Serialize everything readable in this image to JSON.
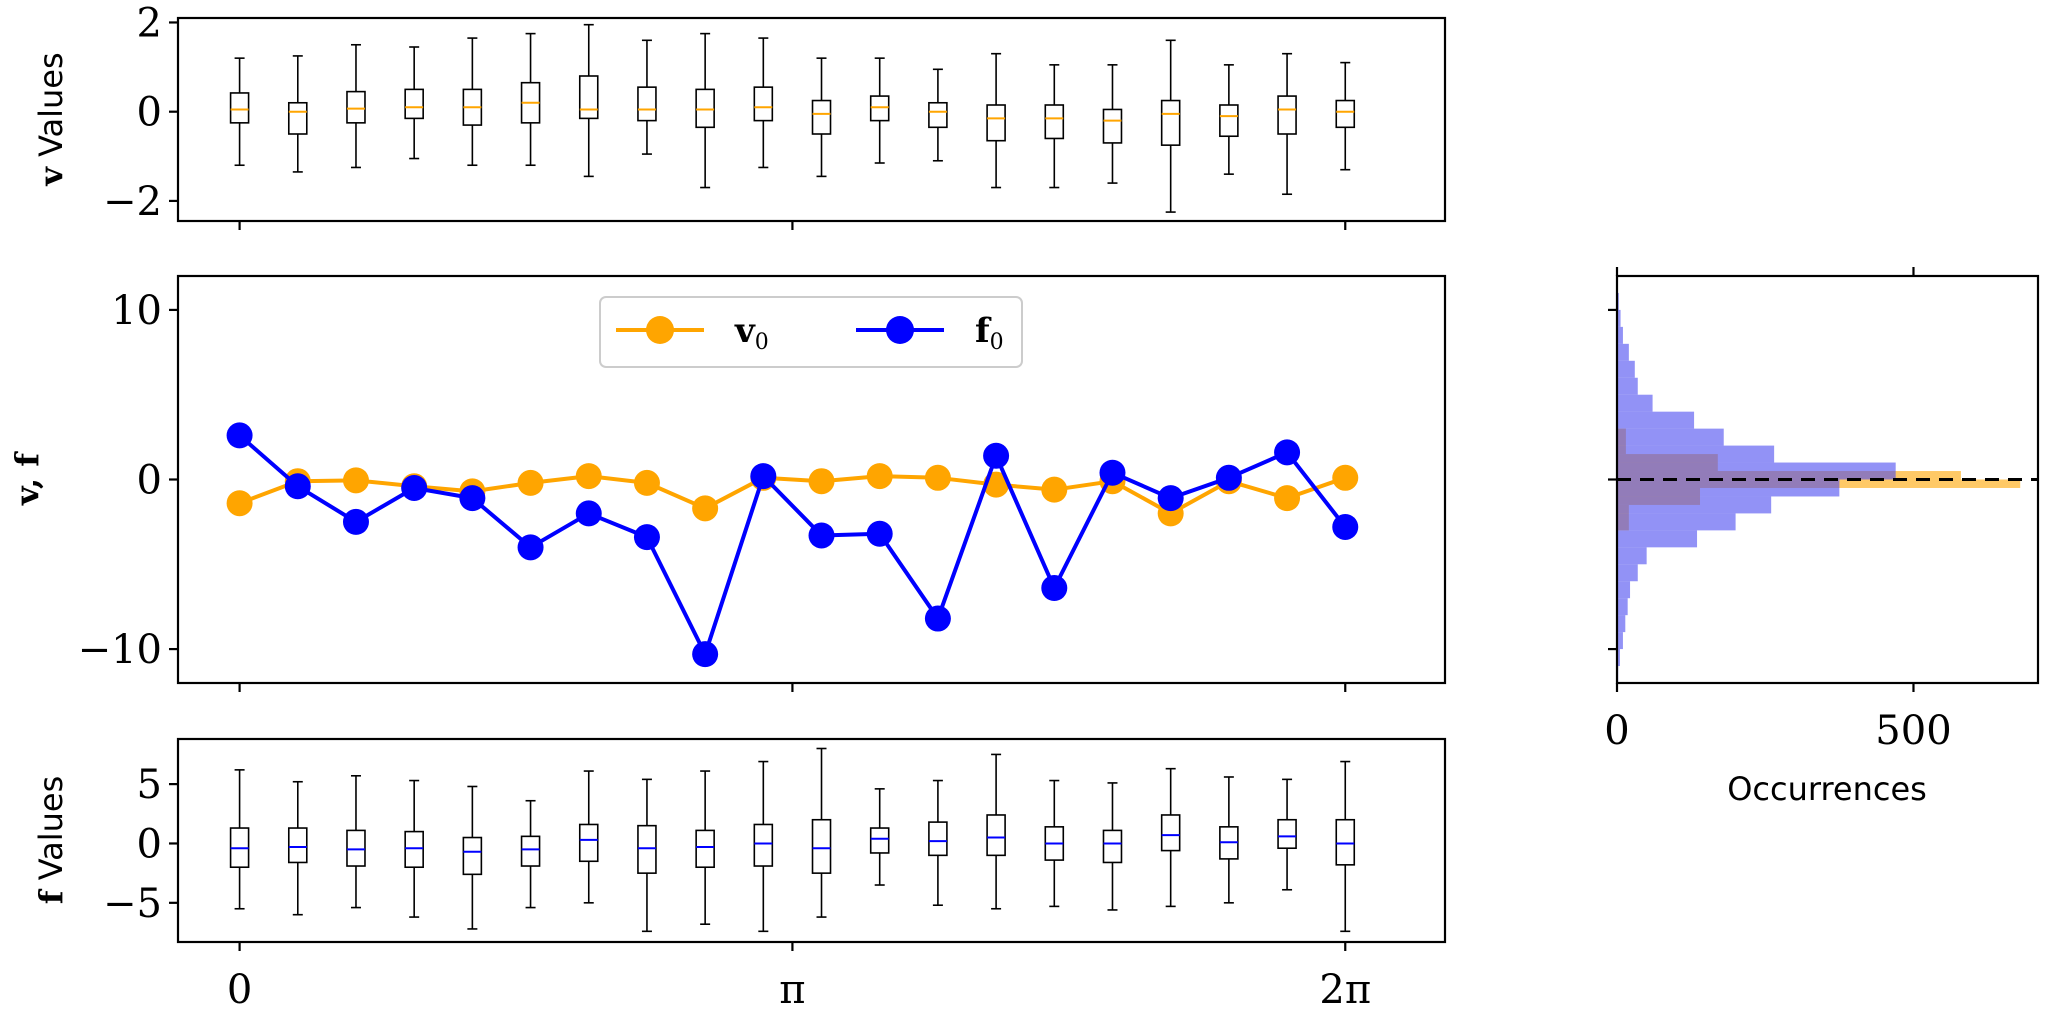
{
  "colors": {
    "v": "#FFA500",
    "f": "#0000FF",
    "v_hist": "#FFA500",
    "f_hist": "#4A4AF0"
  },
  "x_ticks": [
    "0",
    "π",
    "2π"
  ],
  "top_panel": {
    "ylabel_bold": "v",
    "ylabel_rest": " Values",
    "y_ticks": [
      "2",
      "0",
      "−2"
    ]
  },
  "middle_panel": {
    "ylabel": "v, f",
    "y_ticks": [
      "10",
      "0",
      "−10"
    ],
    "legend": {
      "v_label": "v",
      "v_sub": "0",
      "f_label": "f",
      "f_sub": "0"
    }
  },
  "bottom_panel": {
    "ylabel_bold": "f",
    "ylabel_rest": " Values",
    "y_ticks": [
      "5",
      "0",
      "−5"
    ]
  },
  "hist_panel": {
    "x_ticks": [
      "0",
      "500"
    ],
    "xlabel": "Occurrences"
  },
  "chart_data": [
    {
      "type": "box",
      "panel": "top",
      "xlim": [
        -0.35,
        6.85
      ],
      "ylim": [
        -2.45,
        2.1
      ],
      "x": [
        0,
        0.3307,
        0.6614,
        0.9921,
        1.3228,
        1.6535,
        1.9842,
        2.3149,
        2.6456,
        2.9762,
        3.3069,
        3.6376,
        3.9683,
        4.299,
        4.6297,
        4.9604,
        5.2911,
        5.6218,
        5.9525,
        6.2832
      ],
      "boxes": [
        {
          "min": -1.2,
          "q1": -0.25,
          "med": 0.05,
          "q3": 0.42,
          "max": 1.2
        },
        {
          "min": -1.35,
          "q1": -0.5,
          "med": 0.0,
          "q3": 0.2,
          "max": 1.25
        },
        {
          "min": -1.25,
          "q1": -0.25,
          "med": 0.07,
          "q3": 0.45,
          "max": 1.5
        },
        {
          "min": -1.05,
          "q1": -0.15,
          "med": 0.1,
          "q3": 0.5,
          "max": 1.45
        },
        {
          "min": -1.2,
          "q1": -0.3,
          "med": 0.1,
          "q3": 0.5,
          "max": 1.65
        },
        {
          "min": -1.2,
          "q1": -0.25,
          "med": 0.2,
          "q3": 0.65,
          "max": 1.75
        },
        {
          "min": -1.45,
          "q1": -0.15,
          "med": 0.05,
          "q3": 0.8,
          "max": 1.95
        },
        {
          "min": -0.95,
          "q1": -0.2,
          "med": 0.05,
          "q3": 0.55,
          "max": 1.6
        },
        {
          "min": -1.7,
          "q1": -0.35,
          "med": 0.05,
          "q3": 0.5,
          "max": 1.75
        },
        {
          "min": -1.25,
          "q1": -0.2,
          "med": 0.1,
          "q3": 0.55,
          "max": 1.65
        },
        {
          "min": -1.45,
          "q1": -0.5,
          "med": -0.05,
          "q3": 0.25,
          "max": 1.2
        },
        {
          "min": -1.15,
          "q1": -0.2,
          "med": 0.1,
          "q3": 0.35,
          "max": 1.2
        },
        {
          "min": -1.1,
          "q1": -0.35,
          "med": 0.0,
          "q3": 0.2,
          "max": 0.95
        },
        {
          "min": -1.7,
          "q1": -0.65,
          "med": -0.15,
          "q3": 0.15,
          "max": 1.3
        },
        {
          "min": -1.7,
          "q1": -0.6,
          "med": -0.15,
          "q3": 0.15,
          "max": 1.05
        },
        {
          "min": -1.6,
          "q1": -0.7,
          "med": -0.2,
          "q3": 0.05,
          "max": 1.05
        },
        {
          "min": -2.25,
          "q1": -0.75,
          "med": -0.05,
          "q3": 0.25,
          "max": 1.6
        },
        {
          "min": -1.4,
          "q1": -0.55,
          "med": -0.1,
          "q3": 0.15,
          "max": 1.05
        },
        {
          "min": -1.85,
          "q1": -0.5,
          "med": 0.05,
          "q3": 0.35,
          "max": 1.3
        },
        {
          "min": -1.3,
          "q1": -0.35,
          "med": 0.0,
          "q3": 0.25,
          "max": 1.1
        }
      ]
    },
    {
      "type": "line",
      "panel": "middle",
      "xlim": [
        -0.35,
        6.85
      ],
      "ylim": [
        -12,
        12
      ],
      "x": [
        0,
        0.3307,
        0.6614,
        0.9921,
        1.3228,
        1.6535,
        1.9842,
        2.3149,
        2.6456,
        2.9762,
        3.3069,
        3.6376,
        3.9683,
        4.299,
        4.6297,
        4.9604,
        5.2911,
        5.6218,
        5.9525,
        6.2832
      ],
      "series": [
        {
          "name": "v0",
          "color": "#FFA500",
          "values": [
            -1.4,
            -0.1,
            -0.05,
            -0.4,
            -0.7,
            -0.2,
            0.2,
            -0.2,
            -1.7,
            0.1,
            -0.1,
            0.2,
            0.1,
            -0.3,
            -0.6,
            -0.1,
            -2.0,
            -0.1,
            -1.1,
            0.1
          ]
        },
        {
          "name": "f0",
          "color": "#0000FF",
          "values": [
            2.6,
            -0.4,
            -2.5,
            -0.5,
            -1.1,
            -4.0,
            -2.0,
            -3.4,
            -10.3,
            0.2,
            -3.3,
            -3.2,
            -8.2,
            1.4,
            -6.4,
            0.4,
            -1.1,
            0.1,
            1.6,
            -2.8
          ]
        }
      ]
    },
    {
      "type": "box",
      "panel": "bottom",
      "xlim": [
        -0.35,
        6.85
      ],
      "ylim": [
        -8.3,
        8.8
      ],
      "x": [
        0,
        0.3307,
        0.6614,
        0.9921,
        1.3228,
        1.6535,
        1.9842,
        2.3149,
        2.6456,
        2.9762,
        3.3069,
        3.6376,
        3.9683,
        4.299,
        4.6297,
        4.9604,
        5.2911,
        5.6218,
        5.9525,
        6.2832
      ],
      "boxes": [
        {
          "min": -5.5,
          "q1": -2.0,
          "med": -0.4,
          "q3": 1.3,
          "max": 6.2
        },
        {
          "min": -6.0,
          "q1": -1.6,
          "med": -0.3,
          "q3": 1.3,
          "max": 5.2
        },
        {
          "min": -5.4,
          "q1": -1.9,
          "med": -0.5,
          "q3": 1.1,
          "max": 5.7
        },
        {
          "min": -6.2,
          "q1": -2.0,
          "med": -0.4,
          "q3": 1.0,
          "max": 5.3
        },
        {
          "min": -7.2,
          "q1": -2.6,
          "med": -0.7,
          "q3": 0.5,
          "max": 4.8
        },
        {
          "min": -5.4,
          "q1": -1.9,
          "med": -0.5,
          "q3": 0.6,
          "max": 3.6
        },
        {
          "min": -5.0,
          "q1": -1.5,
          "med": 0.3,
          "q3": 1.6,
          "max": 6.1
        },
        {
          "min": -7.4,
          "q1": -2.5,
          "med": -0.4,
          "q3": 1.5,
          "max": 5.4
        },
        {
          "min": -6.8,
          "q1": -2.0,
          "med": -0.3,
          "q3": 1.1,
          "max": 6.1
        },
        {
          "min": -7.4,
          "q1": -1.9,
          "med": 0.0,
          "q3": 1.6,
          "max": 6.9
        },
        {
          "min": -6.2,
          "q1": -2.5,
          "med": -0.4,
          "q3": 2.0,
          "max": 8.0
        },
        {
          "min": -3.5,
          "q1": -0.8,
          "med": 0.4,
          "q3": 1.3,
          "max": 4.6
        },
        {
          "min": -5.2,
          "q1": -1.0,
          "med": 0.2,
          "q3": 1.8,
          "max": 5.3
        },
        {
          "min": -5.5,
          "q1": -1.0,
          "med": 0.5,
          "q3": 2.4,
          "max": 7.5
        },
        {
          "min": -5.3,
          "q1": -1.4,
          "med": 0.0,
          "q3": 1.4,
          "max": 5.3
        },
        {
          "min": -5.6,
          "q1": -1.6,
          "med": 0.0,
          "q3": 1.1,
          "max": 5.1
        },
        {
          "min": -5.3,
          "q1": -0.6,
          "med": 0.7,
          "q3": 2.4,
          "max": 6.3
        },
        {
          "min": -5.0,
          "q1": -1.3,
          "med": 0.1,
          "q3": 1.4,
          "max": 5.6
        },
        {
          "min": -3.9,
          "q1": -0.4,
          "med": 0.6,
          "q3": 2.0,
          "max": 5.4
        },
        {
          "min": -7.4,
          "q1": -1.8,
          "med": 0.0,
          "q3": 2.0,
          "max": 6.9
        }
      ]
    },
    {
      "type": "histogram",
      "panel": "right",
      "orientation": "horizontal",
      "xlim": [
        0,
        710
      ],
      "ylim": [
        -12,
        12
      ],
      "x_ticks": [
        0,
        500
      ],
      "reference_line": 0,
      "series": [
        {
          "name": "v",
          "color": "#FFA500",
          "bin_edges": [
            -3,
            -1.5,
            -0.5,
            0,
            0.5,
            1.5,
            3
          ],
          "counts": [
            20,
            140,
            680,
            580,
            170,
            15
          ]
        },
        {
          "name": "f",
          "color": "#4A4AF0",
          "bin_edges": [
            -12,
            -11,
            -10,
            -9,
            -8,
            -7,
            -6,
            -5,
            -4,
            -3,
            -2,
            -1,
            0,
            1,
            2,
            3,
            4,
            5,
            6,
            7,
            8,
            9,
            10,
            11,
            12
          ],
          "counts": [
            2,
            5,
            10,
            14,
            18,
            22,
            35,
            50,
            135,
            200,
            260,
            375,
            470,
            265,
            180,
            130,
            60,
            35,
            30,
            20,
            10,
            6,
            3,
            1
          ]
        }
      ]
    }
  ]
}
